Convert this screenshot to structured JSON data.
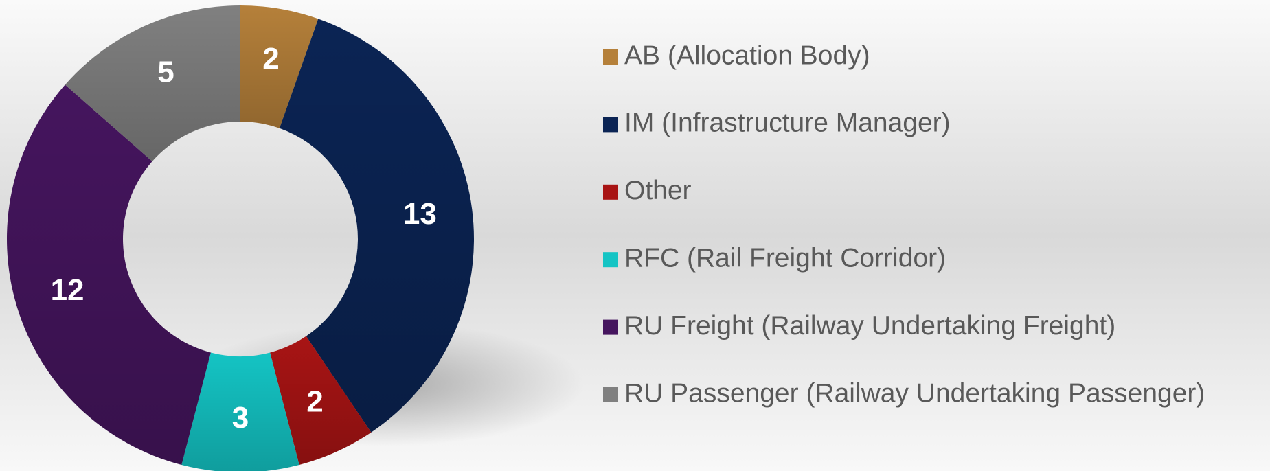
{
  "chart_data": {
    "type": "donut",
    "categories": [
      "AB (Allocation Body)",
      "IM (Infrastructure Manager)",
      "Other",
      "RFC (Rail Freight Corridor)",
      "RU Freight (Railway Undertaking Freight)",
      "RU Passenger (Railway Undertaking Passenger)"
    ],
    "values": [
      2,
      13,
      2,
      3,
      12,
      5
    ],
    "colors": [
      "#b5803a",
      "#0b2454",
      "#a81414",
      "#14c4c4",
      "#45155e",
      "#808080"
    ],
    "legend": "right"
  }
}
